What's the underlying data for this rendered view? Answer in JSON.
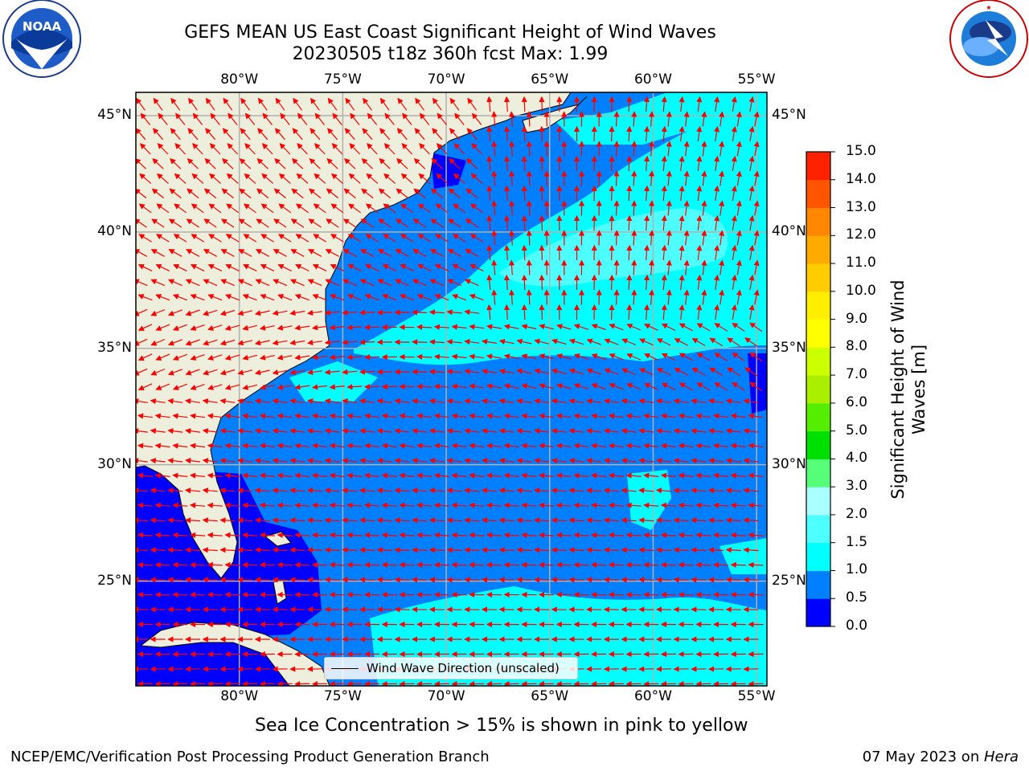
{
  "header": {
    "title_line1": "GEFS MEAN US East Coast Significant Height of Wind Waves",
    "title_line2": "20230505 t18z 360h fcst   Max: 1.99"
  },
  "logos": {
    "left": {
      "name": "noaa-logo",
      "text": "NOAA",
      "ring_text": "NATIONAL OCEANIC AND ATMOSPHERIC ADMINISTRATION · U.S. DEPARTMENT OF COMMERCE"
    },
    "right": {
      "name": "nws-logo",
      "ring_text": "NATIONAL WEATHER SERVICE"
    }
  },
  "map": {
    "lon_labels": [
      "80°W",
      "75°W",
      "70°W",
      "65°W",
      "60°W",
      "55°W"
    ],
    "lat_labels": [
      "45°N",
      "40°N",
      "35°N",
      "30°N",
      "25°N"
    ],
    "lon_values": [
      -80,
      -75,
      -70,
      -65,
      -60,
      -55
    ],
    "lat_values": [
      45,
      40,
      35,
      30,
      25
    ],
    "extent": {
      "lon": [
        -85,
        -54.5
      ],
      "lat": [
        20.5,
        46
      ]
    },
    "legend_label": "Wind Wave Direction (unscaled)"
  },
  "colorbar": {
    "label": "Significant Height of Wind Waves [m]",
    "label_line1": "Significant Height of Wind",
    "label_line2": "Waves [m]",
    "ticks": [
      "0.0",
      "0.5",
      "1.0",
      "1.5",
      "2.0",
      "3.0",
      "4.0",
      "5.0",
      "6.0",
      "7.0",
      "8.0",
      "9.0",
      "10.0",
      "11.0",
      "12.0",
      "13.0",
      "14.0",
      "15.0"
    ],
    "colors": [
      "#0000ff",
      "#0080ff",
      "#00ffff",
      "#4dffff",
      "#aaffff",
      "#55ff77",
      "#00e000",
      "#55ee00",
      "#aaee00",
      "#ccff00",
      "#ffff00",
      "#ffee00",
      "#ffcc00",
      "#ffaa00",
      "#ff8800",
      "#ff5500",
      "#ff2200"
    ]
  },
  "colors": {
    "land": "#eeeedd",
    "grid": "#b0b0b0",
    "arrow": "#ff0000",
    "coast": "#000000"
  },
  "caption": "Sea Ice Concentration > 15% is shown in pink to yellow",
  "footer": {
    "left": "NCEP/EMC/Verification Post Processing Product Generation Branch",
    "date": "07 May 2023 on ",
    "machine": "Hera"
  }
}
